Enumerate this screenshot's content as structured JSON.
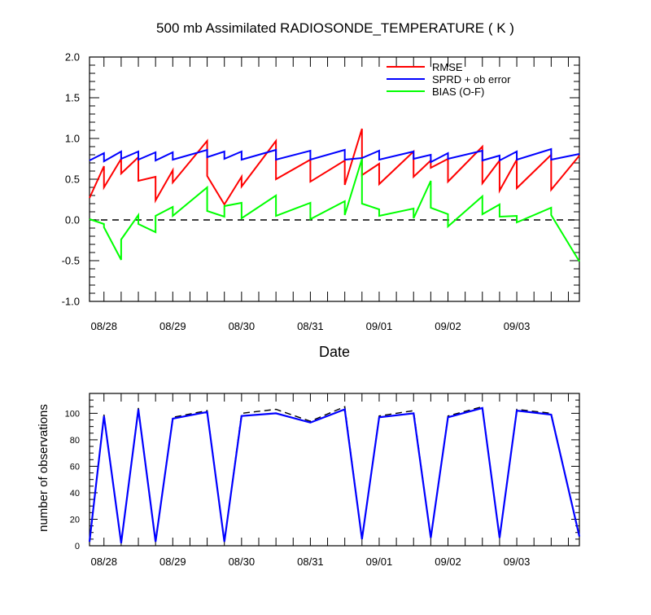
{
  "title": "500 mb Assimilated RADIOSONDE_TEMPERATURE ( K )",
  "colors": {
    "rmse": "#ff0000",
    "sprd": "#0000ff",
    "bias": "#00ff00",
    "zero": "#000000",
    "obs_used": "#0000ff",
    "obs_total": "#000000"
  },
  "chart_data": [
    {
      "type": "line",
      "panel": "top",
      "title": "500 mb Assimilated RADIOSONDE_TEMPERATURE ( K )",
      "xlabel": "Date",
      "ylabel": "",
      "x_unit": "days from 08/27 00Z",
      "xlim": [
        0.79,
        7.91
      ],
      "ylim": [
        -1.0,
        2.0
      ],
      "yticks": [
        -1.0,
        -0.5,
        0.0,
        0.5,
        1.0,
        1.5,
        2.0
      ],
      "ytick_labels": [
        "-1.0",
        "-0.5",
        "0.0",
        "0.5",
        "1.0",
        "1.5",
        "2.0"
      ],
      "xticks": [
        1.0,
        2.0,
        3.0,
        4.0,
        5.0,
        6.0,
        7.0
      ],
      "xtick_labels": [
        "08/28",
        "08/29",
        "08/30",
        "08/31",
        "09/01",
        "09/02",
        "09/03"
      ],
      "legend": [
        "RMSE",
        "SPRD + ob error",
        "BIAS (O-F)"
      ],
      "legend_position": "top-right",
      "reference_line": 0.0,
      "series": [
        {
          "name": "RMSE",
          "points": [
            [
              0.79,
              0.27
            ],
            [
              1.0,
              0.66
            ],
            [
              1.0,
              0.4
            ],
            [
              1.25,
              0.75
            ],
            [
              1.25,
              0.57
            ],
            [
              1.5,
              0.77
            ],
            [
              1.5,
              0.48
            ],
            [
              1.75,
              0.53
            ],
            [
              1.75,
              0.24
            ],
            [
              2.0,
              0.61
            ],
            [
              2.0,
              0.46
            ],
            [
              2.5,
              0.97
            ],
            [
              2.5,
              0.54
            ],
            [
              2.75,
              0.19
            ],
            [
              3.0,
              0.53
            ],
            [
              3.0,
              0.41
            ],
            [
              3.5,
              0.97
            ],
            [
              3.5,
              0.5
            ],
            [
              4.0,
              0.74
            ],
            [
              4.0,
              0.47
            ],
            [
              4.5,
              0.73
            ],
            [
              4.5,
              0.43
            ],
            [
              4.75,
              1.12
            ],
            [
              4.75,
              0.55
            ],
            [
              5.0,
              0.69
            ],
            [
              5.0,
              0.44
            ],
            [
              5.5,
              0.84
            ],
            [
              5.5,
              0.53
            ],
            [
              5.75,
              0.73
            ],
            [
              5.75,
              0.64
            ],
            [
              6.0,
              0.75
            ],
            [
              6.0,
              0.47
            ],
            [
              6.5,
              0.9
            ],
            [
              6.5,
              0.45
            ],
            [
              6.75,
              0.73
            ],
            [
              6.75,
              0.36
            ],
            [
              7.0,
              0.74
            ],
            [
              7.0,
              0.39
            ],
            [
              7.5,
              0.8
            ],
            [
              7.5,
              0.37
            ],
            [
              7.91,
              0.79
            ]
          ]
        },
        {
          "name": "SPRD + ob error",
          "points": [
            [
              0.79,
              0.73
            ],
            [
              1.0,
              0.82
            ],
            [
              1.0,
              0.72
            ],
            [
              1.25,
              0.84
            ],
            [
              1.25,
              0.75
            ],
            [
              1.5,
              0.84
            ],
            [
              1.5,
              0.74
            ],
            [
              1.75,
              0.83
            ],
            [
              1.75,
              0.73
            ],
            [
              2.0,
              0.83
            ],
            [
              2.0,
              0.74
            ],
            [
              2.5,
              0.86
            ],
            [
              2.5,
              0.77
            ],
            [
              2.75,
              0.84
            ],
            [
              2.75,
              0.75
            ],
            [
              3.0,
              0.84
            ],
            [
              3.0,
              0.74
            ],
            [
              3.5,
              0.86
            ],
            [
              3.5,
              0.74
            ],
            [
              4.0,
              0.85
            ],
            [
              4.0,
              0.74
            ],
            [
              4.5,
              0.86
            ],
            [
              4.5,
              0.74
            ],
            [
              4.75,
              0.76
            ],
            [
              5.0,
              0.85
            ],
            [
              5.0,
              0.74
            ],
            [
              5.5,
              0.84
            ],
            [
              5.5,
              0.75
            ],
            [
              5.75,
              0.8
            ],
            [
              5.75,
              0.71
            ],
            [
              6.0,
              0.82
            ],
            [
              6.0,
              0.75
            ],
            [
              6.5,
              0.85
            ],
            [
              6.5,
              0.73
            ],
            [
              6.75,
              0.79
            ],
            [
              6.75,
              0.73
            ],
            [
              7.0,
              0.84
            ],
            [
              7.0,
              0.74
            ],
            [
              7.5,
              0.87
            ],
            [
              7.5,
              0.74
            ],
            [
              7.91,
              0.81
            ]
          ]
        },
        {
          "name": "BIAS (O-F)",
          "points": [
            [
              0.79,
              0.01
            ],
            [
              1.0,
              -0.05
            ],
            [
              1.0,
              -0.09
            ],
            [
              1.25,
              -0.49
            ],
            [
              1.25,
              -0.24
            ],
            [
              1.5,
              0.06
            ],
            [
              1.5,
              -0.05
            ],
            [
              1.75,
              -0.15
            ],
            [
              1.75,
              0.05
            ],
            [
              2.0,
              0.16
            ],
            [
              2.0,
              0.05
            ],
            [
              2.5,
              0.4
            ],
            [
              2.5,
              0.11
            ],
            [
              2.75,
              0.04
            ],
            [
              2.75,
              0.17
            ],
            [
              3.0,
              0.21
            ],
            [
              3.0,
              0.02
            ],
            [
              3.5,
              0.3
            ],
            [
              3.5,
              0.05
            ],
            [
              4.0,
              0.21
            ],
            [
              4.0,
              0.01
            ],
            [
              4.5,
              0.23
            ],
            [
              4.5,
              0.06
            ],
            [
              4.75,
              0.75
            ],
            [
              4.75,
              0.2
            ],
            [
              5.0,
              0.13
            ],
            [
              5.0,
              0.05
            ],
            [
              5.5,
              0.14
            ],
            [
              5.5,
              0.02
            ],
            [
              5.75,
              0.48
            ],
            [
              5.75,
              0.15
            ],
            [
              6.0,
              0.07
            ],
            [
              6.0,
              -0.08
            ],
            [
              6.5,
              0.29
            ],
            [
              6.5,
              0.07
            ],
            [
              6.75,
              0.19
            ],
            [
              6.75,
              0.04
            ],
            [
              7.0,
              0.05
            ],
            [
              7.0,
              -0.03
            ],
            [
              7.5,
              0.15
            ],
            [
              7.5,
              0.06
            ],
            [
              7.91,
              -0.51
            ]
          ]
        }
      ]
    },
    {
      "type": "line",
      "panel": "bottom",
      "ylabel": "number of observations",
      "x_unit": "days from 08/27 00Z",
      "xlim": [
        0.79,
        7.91
      ],
      "ylim": [
        0,
        115
      ],
      "yticks": [
        0,
        20,
        40,
        60,
        80,
        100
      ],
      "ytick_labels": [
        "0",
        "20",
        "40",
        "60",
        "80",
        "100"
      ],
      "xticks": [
        1.0,
        2.0,
        3.0,
        4.0,
        5.0,
        6.0,
        7.0
      ],
      "xtick_labels": [
        "08/28",
        "08/29",
        "08/30",
        "08/31",
        "09/01",
        "09/02",
        "09/03"
      ],
      "series": [
        {
          "name": "",
          "style": "solid",
          "points": [
            [
              0.79,
              3
            ],
            [
              1.0,
              98
            ],
            [
              1.25,
              2
            ],
            [
              1.5,
              103
            ],
            [
              1.75,
              3
            ],
            [
              2.0,
              96
            ],
            [
              2.5,
              101
            ],
            [
              2.75,
              3
            ],
            [
              3.0,
              98
            ],
            [
              3.5,
              100
            ],
            [
              4.0,
              93
            ],
            [
              4.5,
              103
            ],
            [
              4.75,
              5
            ],
            [
              5.0,
              97
            ],
            [
              5.5,
              100
            ],
            [
              5.75,
              6
            ],
            [
              6.0,
              97
            ],
            [
              6.5,
              104
            ],
            [
              6.75,
              6
            ],
            [
              7.0,
              102
            ],
            [
              7.5,
              99
            ],
            [
              7.91,
              7
            ]
          ]
        },
        {
          "name": "",
          "style": "dashed",
          "points": [
            [
              0.79,
              3
            ],
            [
              1.0,
              99
            ],
            [
              1.25,
              2
            ],
            [
              1.5,
              104
            ],
            [
              1.75,
              3
            ],
            [
              2.0,
              97
            ],
            [
              2.5,
              102
            ],
            [
              2.75,
              3
            ],
            [
              3.0,
              100
            ],
            [
              3.5,
              103
            ],
            [
              4.0,
              94
            ],
            [
              4.5,
              105
            ],
            [
              4.75,
              5
            ],
            [
              5.0,
              98
            ],
            [
              5.5,
              102
            ],
            [
              5.75,
              6
            ],
            [
              6.0,
              98
            ],
            [
              6.5,
              105
            ],
            [
              6.75,
              6
            ],
            [
              7.0,
              103
            ],
            [
              7.5,
              100
            ],
            [
              7.91,
              7
            ]
          ]
        }
      ]
    }
  ]
}
